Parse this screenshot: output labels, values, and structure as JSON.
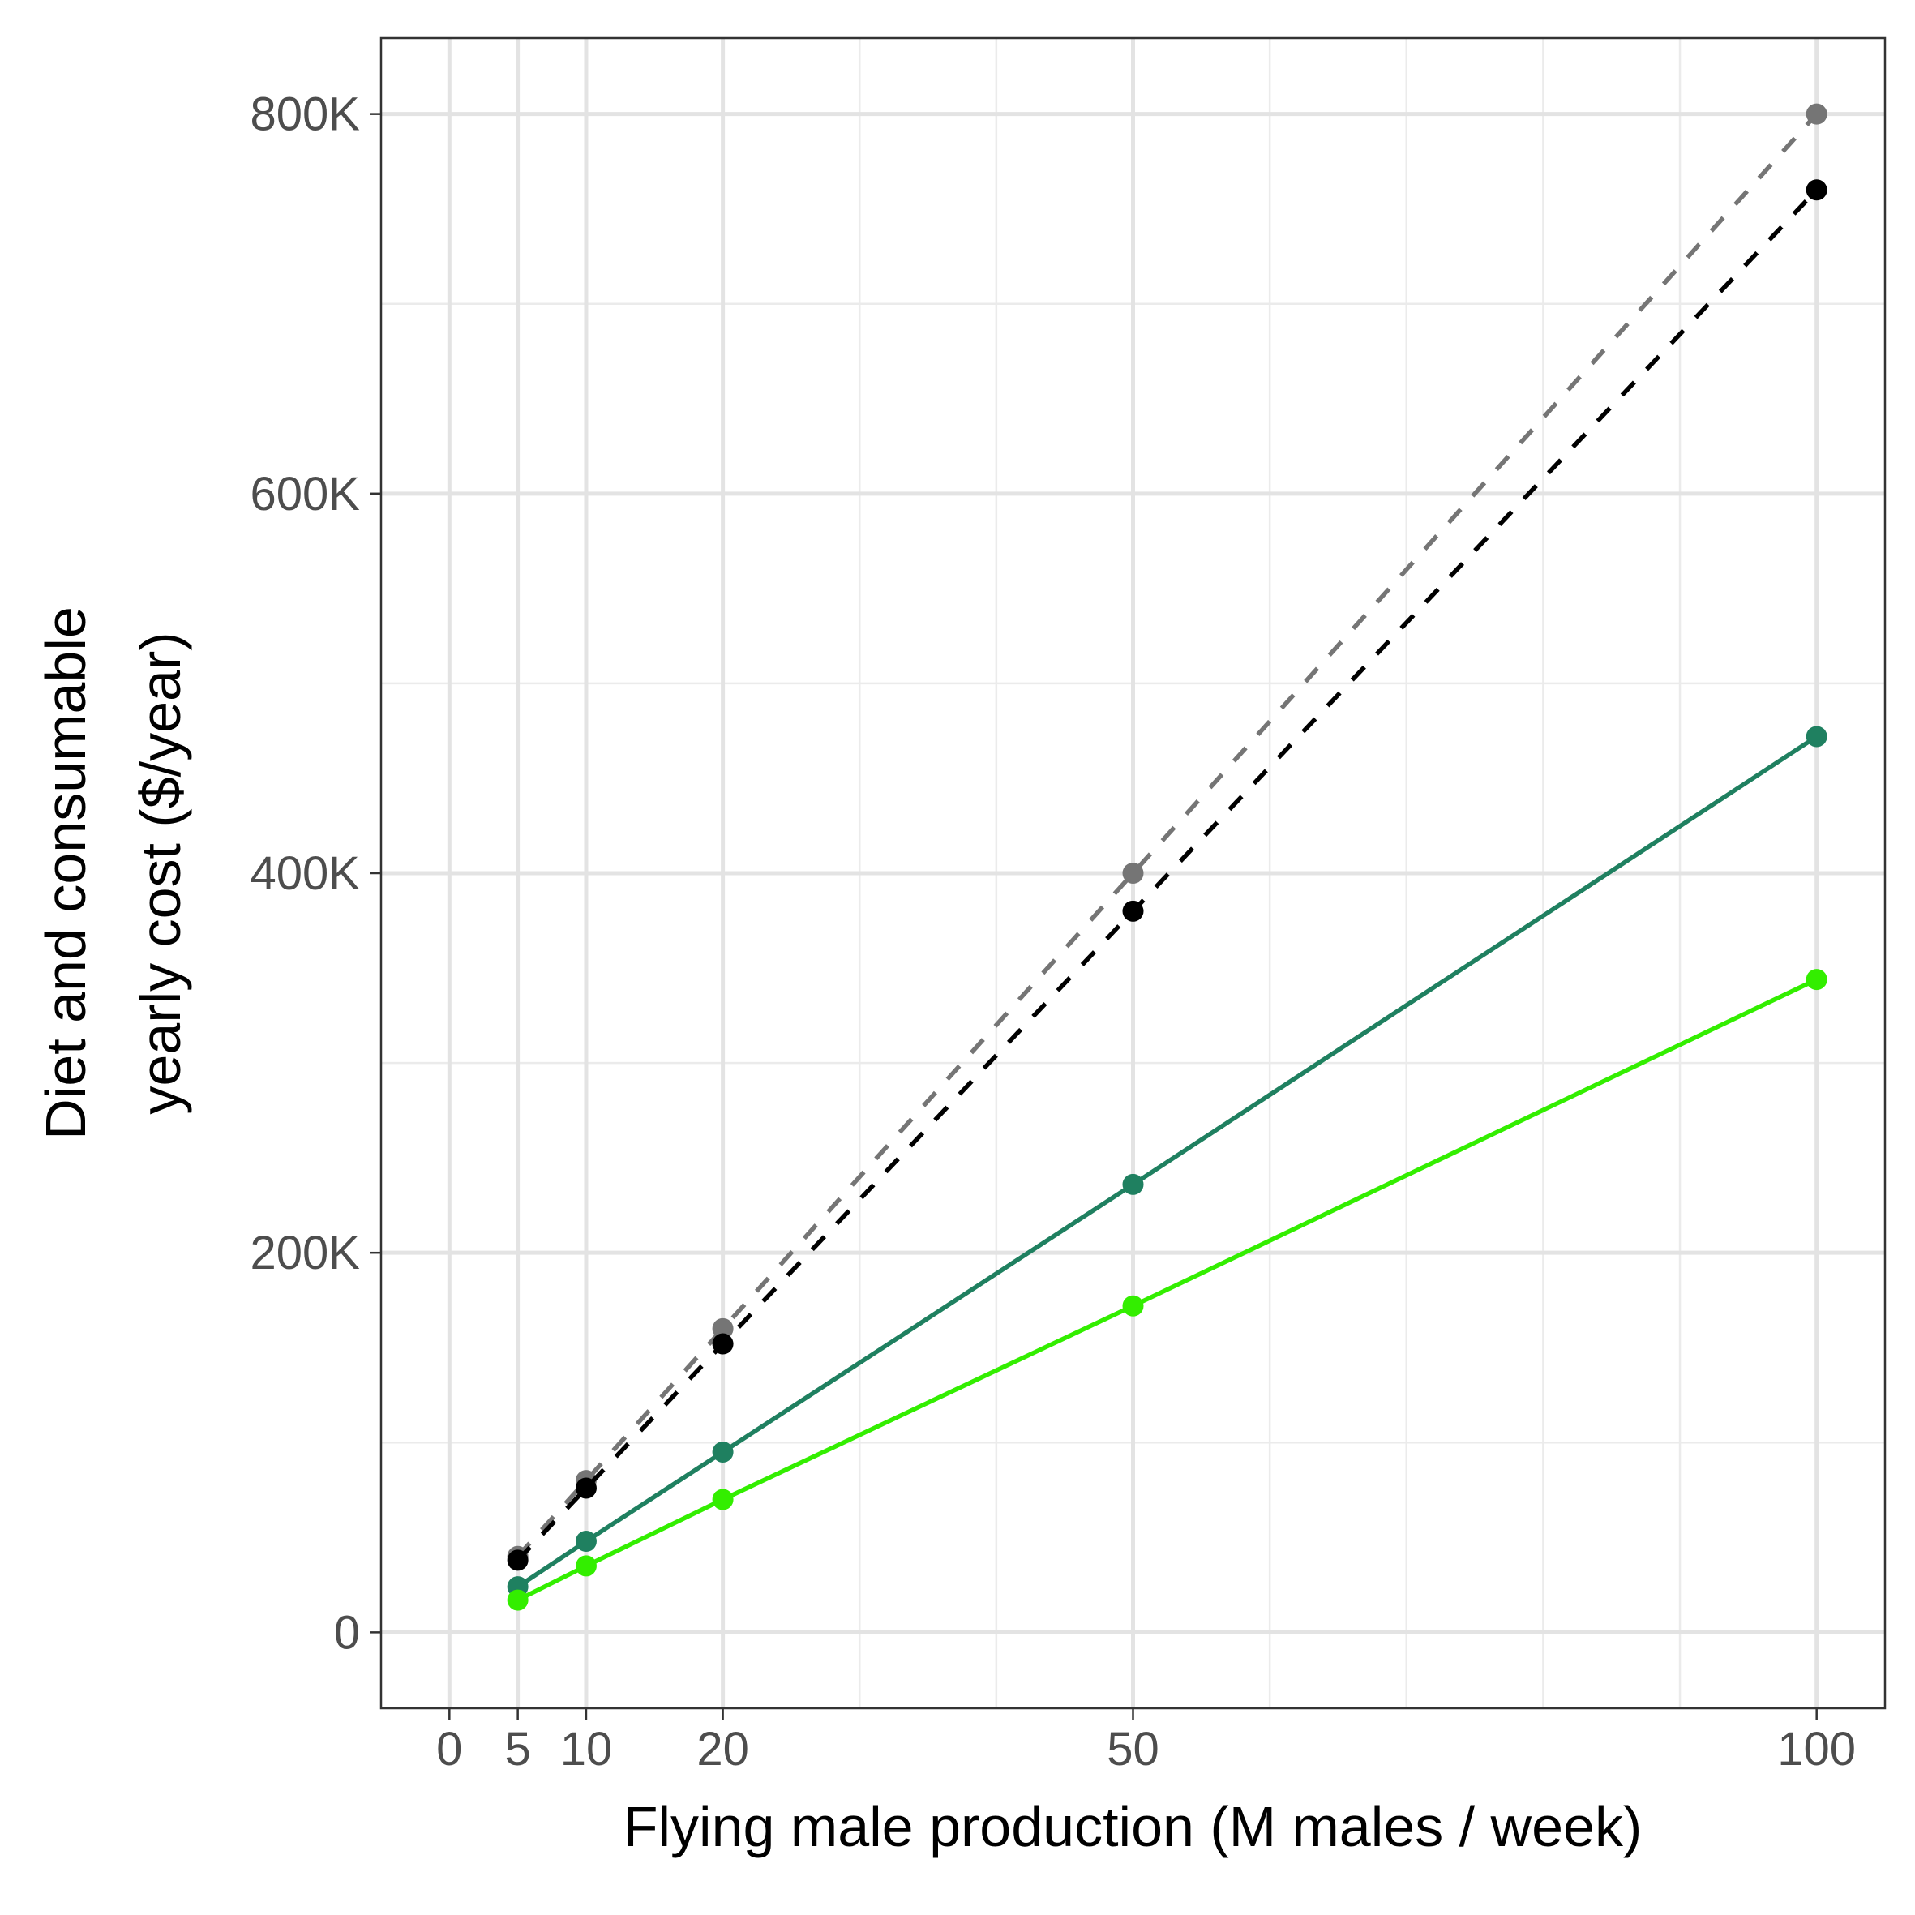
{
  "chart_data": {
    "type": "line",
    "title": "",
    "xlabel": "Flying male production (M males / week)",
    "ylabel_lines": [
      "Diet and consumable",
      "yearly cost ($/year)"
    ],
    "x": [
      5,
      10,
      20,
      50,
      100
    ],
    "xlim": [
      -5,
      105
    ],
    "ylim": [
      -40000,
      840000
    ],
    "x_ticks": [
      0,
      5,
      10,
      20,
      50,
      100
    ],
    "x_tick_labels": [
      "0",
      "5",
      "10",
      "20",
      "50",
      "100"
    ],
    "x_minor_grid": [
      30,
      40,
      60,
      70,
      80,
      90
    ],
    "y_ticks": [
      0,
      200000,
      400000,
      600000,
      800000
    ],
    "y_tick_labels": [
      "0",
      "200K",
      "400K",
      "600K",
      "800K"
    ],
    "y_minor_grid": [
      100000,
      300000,
      500000,
      700000
    ],
    "grid": true,
    "legend": "none",
    "series": [
      {
        "color": "#757575",
        "dash": "dashed",
        "values": [
          40000,
          80000,
          160000,
          400000,
          800000
        ]
      },
      {
        "color": "#000000",
        "dash": "dashed",
        "values": [
          38000,
          76000,
          152000,
          380000,
          760000
        ]
      },
      {
        "color": "#1f8060",
        "dash": "solid",
        "values": [
          24000,
          48000,
          95000,
          236000,
          472000
        ]
      },
      {
        "color": "#33ee00",
        "dash": "solid",
        "values": [
          17000,
          35000,
          70000,
          172000,
          344000
        ]
      }
    ]
  }
}
